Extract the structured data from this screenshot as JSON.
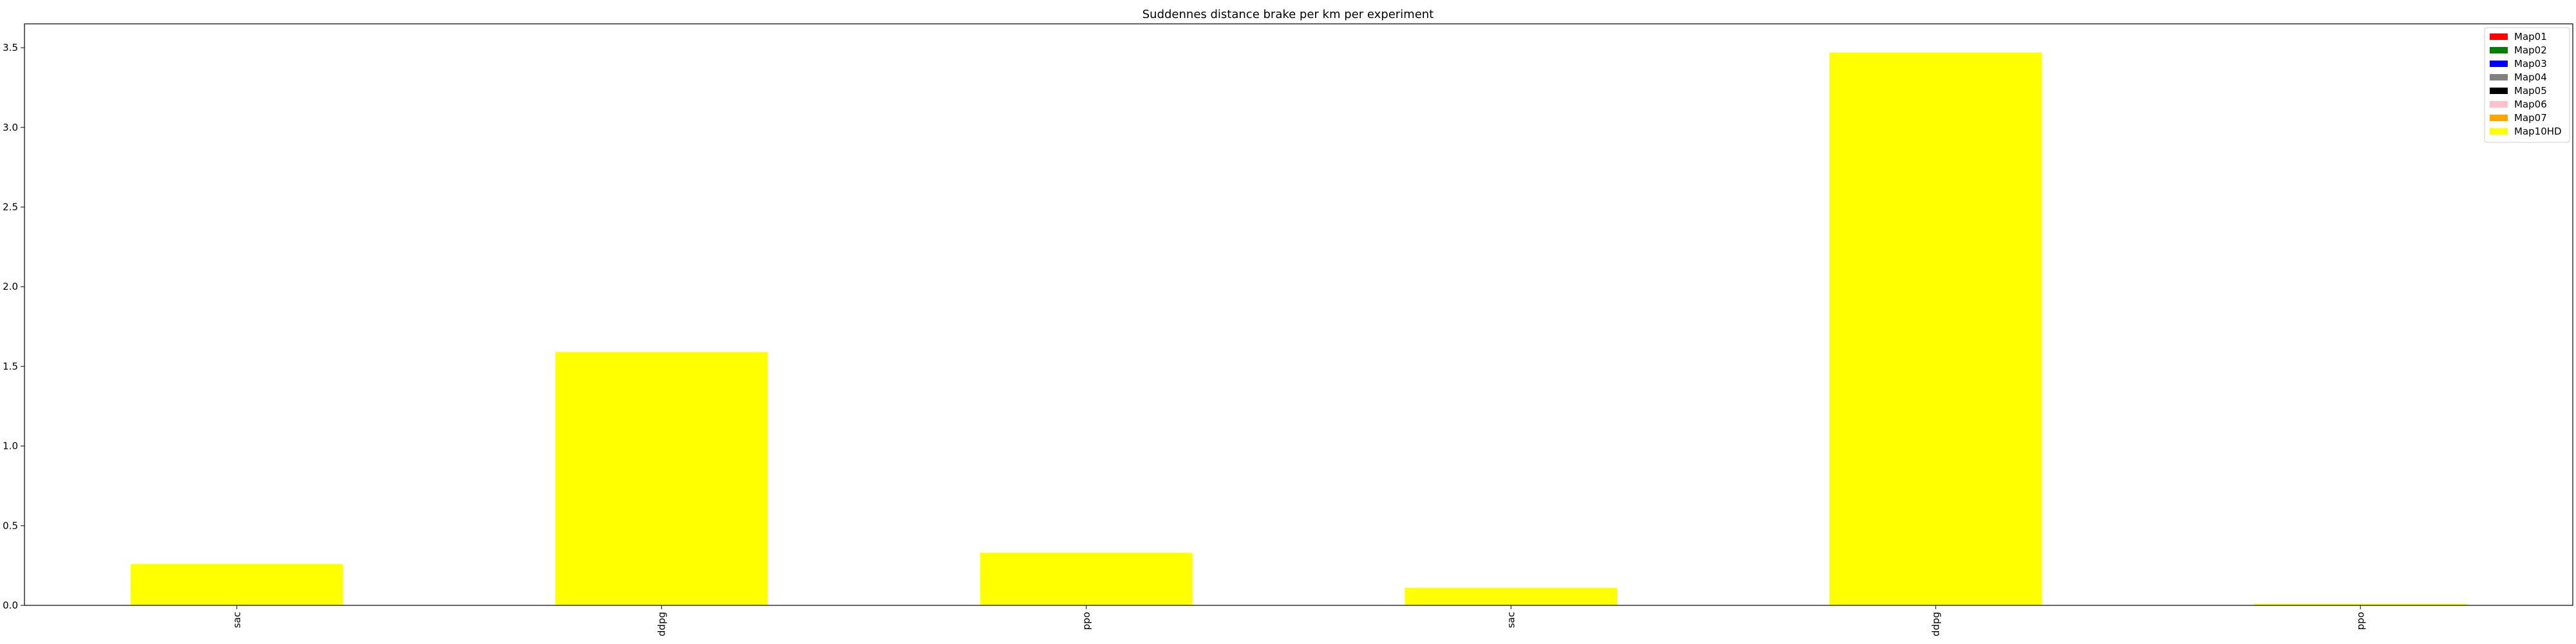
{
  "chart_data": {
    "type": "bar",
    "stacked": true,
    "title": "Suddennes distance brake per km per experiment",
    "xlabel": "",
    "ylabel": "",
    "categories": [
      "sac",
      "ddpg",
      "ppo",
      "sac",
      "ddpg",
      "ppo"
    ],
    "ylim": [
      0,
      3.65
    ],
    "yticks": [
      0.0,
      0.5,
      1.0,
      1.5,
      2.0,
      2.5,
      3.0,
      3.5
    ],
    "ytick_labels": [
      "0.0",
      "0.5",
      "1.0",
      "1.5",
      "2.0",
      "2.5",
      "3.0",
      "3.5"
    ],
    "grid": false,
    "legend_position": "top-right",
    "series": [
      {
        "name": "Map01",
        "color": "#ff0000",
        "values": [
          0,
          0,
          0,
          0,
          0,
          0
        ]
      },
      {
        "name": "Map02",
        "color": "#008000",
        "values": [
          0,
          0,
          0,
          0,
          0,
          0
        ]
      },
      {
        "name": "Map03",
        "color": "#0000ff",
        "values": [
          0,
          0,
          0,
          0,
          0,
          0
        ]
      },
      {
        "name": "Map04",
        "color": "#808080",
        "values": [
          0,
          0,
          0,
          0,
          0,
          0
        ]
      },
      {
        "name": "Map05",
        "color": "#000000",
        "values": [
          0,
          0,
          0,
          0,
          0,
          0
        ]
      },
      {
        "name": "Map06",
        "color": "#ffc0cb",
        "values": [
          0,
          0,
          0,
          0,
          0,
          0
        ]
      },
      {
        "name": "Map07",
        "color": "#ffa500",
        "values": [
          0,
          0,
          0,
          0,
          0,
          0
        ]
      },
      {
        "name": "Map10HD",
        "color": "#ffff00",
        "values": [
          0.26,
          1.59,
          0.33,
          0.11,
          3.47,
          0.01
        ]
      }
    ]
  }
}
